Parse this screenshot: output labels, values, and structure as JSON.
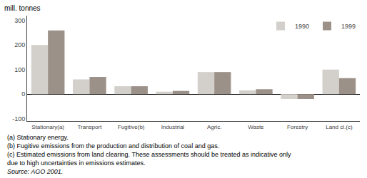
{
  "chart_data": {
    "type": "bar",
    "categories": [
      "Stationary(a)",
      "Transport",
      "Fugitive(b)",
      "Industrial",
      "Agric.",
      "Waste",
      "Forestry",
      "Land cl.(c)"
    ],
    "series": [
      {
        "name": "1990",
        "color": "#d3d0cb",
        "values": [
          200,
          60,
          32,
          10,
          90,
          15,
          -20,
          100
        ]
      },
      {
        "name": "1999",
        "color": "#9c9189",
        "values": [
          260,
          70,
          32,
          13,
          90,
          20,
          -20,
          65
        ]
      }
    ],
    "ylabel": "mill. tonnes",
    "ylim": [
      -110,
      320
    ],
    "yticks": [
      -100,
      0,
      100,
      200,
      300
    ],
    "grid": false,
    "legend": "upper right",
    "annotations": [
      "(a) Stationary energy.",
      "(b) Fugitive emissions from the production and distribution of coal and gas.",
      "(c) Estimated emissions from land clearing. These assessments should be treated as indicative only",
      "due to high uncertainties in emissions estimates.",
      "Source: AGO 2001."
    ]
  }
}
